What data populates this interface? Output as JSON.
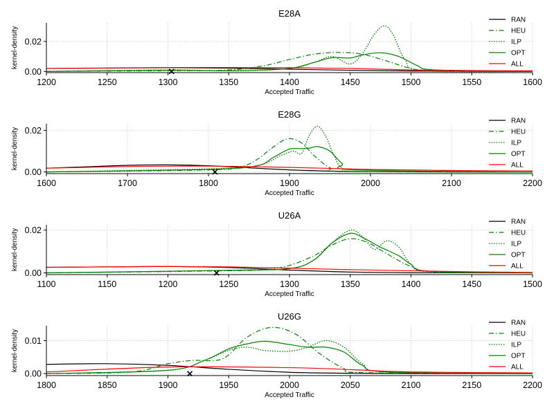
{
  "colors": {
    "RAN": "#000000",
    "HEU": "#008000",
    "ILP": "#008000",
    "OPT": "#008000",
    "ALL": "#ff0000"
  },
  "chart_data": [
    {
      "type": "line",
      "title": "E28A",
      "xlabel": "Accepted Traffic",
      "ylabel": "kernel-density",
      "xlim": [
        1200,
        1600
      ],
      "ylim": [
        -0.0008,
        0.0325
      ],
      "xticks": [
        1200,
        1250,
        1300,
        1350,
        1400,
        1450,
        1500,
        1550,
        1600
      ],
      "yticks": [
        0.0,
        0.02
      ],
      "ytick_labels": [
        "0.00",
        "0.02"
      ],
      "grid": true,
      "legend": "right",
      "marker": {
        "x": 1303,
        "y": 0.0
      },
      "series": [
        {
          "name": "RAN",
          "style": "solid",
          "x": [
            1200,
            1250,
            1300,
            1350,
            1400,
            1450,
            1500,
            1550,
            1600
          ],
          "y": [
            0.002,
            0.0022,
            0.0025,
            0.0022,
            0.0015,
            0.0008,
            0.0003,
            0.0001,
            0.0
          ]
        },
        {
          "name": "HEU",
          "style": "dashdot",
          "x": [
            1200,
            1300,
            1350,
            1380,
            1400,
            1420,
            1440,
            1460,
            1480,
            1500,
            1520,
            1600
          ],
          "y": [
            0.0,
            0.0005,
            0.001,
            0.004,
            0.008,
            0.0115,
            0.0127,
            0.0115,
            0.007,
            0.002,
            0.0004,
            0.0
          ]
        },
        {
          "name": "ILP",
          "style": "dotted",
          "x": [
            1200,
            1300,
            1350,
            1400,
            1420,
            1435,
            1450,
            1460,
            1470,
            1478,
            1485,
            1495,
            1510,
            1600
          ],
          "y": [
            0.0,
            0.001,
            0.0005,
            0.002,
            0.006,
            0.01,
            0.005,
            0.012,
            0.025,
            0.0305,
            0.025,
            0.008,
            0.0005,
            0.0
          ]
        },
        {
          "name": "OPT",
          "style": "solid",
          "x": [
            1200,
            1300,
            1360,
            1400,
            1420,
            1435,
            1450,
            1460,
            1475,
            1490,
            1505,
            1520,
            1600
          ],
          "y": [
            0.0,
            0.0008,
            0.0005,
            0.002,
            0.006,
            0.0092,
            0.009,
            0.011,
            0.0125,
            0.01,
            0.004,
            0.001,
            0.0
          ]
        },
        {
          "name": "ALL",
          "style": "solid",
          "x": [
            1200,
            1250,
            1300,
            1350,
            1400,
            1450,
            1500,
            1550,
            1600
          ],
          "y": [
            0.002,
            0.0023,
            0.0026,
            0.0026,
            0.0025,
            0.002,
            0.001,
            0.0006,
            0.0004
          ]
        }
      ]
    },
    {
      "type": "line",
      "title": "E28G",
      "xlabel": "Accepted Traffic",
      "ylabel": "kernel-density",
      "xlim": [
        1600,
        2200
      ],
      "ylim": [
        -0.0008,
        0.0232
      ],
      "xticks": [
        1600,
        1700,
        1800,
        1900,
        2000,
        2100,
        2200
      ],
      "yticks": [
        0.0,
        0.02
      ],
      "ytick_labels": [
        "0.00",
        "0.02"
      ],
      "grid": true,
      "legend": "right",
      "marker": {
        "x": 1808,
        "y": 0.0
      },
      "series": [
        {
          "name": "RAN",
          "style": "solid",
          "x": [
            1600,
            1650,
            1700,
            1750,
            1800,
            1850,
            1900,
            1950,
            2000,
            2100,
            2200
          ],
          "y": [
            0.0018,
            0.0025,
            0.0032,
            0.0034,
            0.003,
            0.002,
            0.001,
            0.0004,
            0.0001,
            0.0,
            0.0
          ]
        },
        {
          "name": "HEU",
          "style": "dashdot",
          "x": [
            1600,
            1800,
            1840,
            1860,
            1880,
            1898,
            1915,
            1930,
            1950,
            1970,
            2200
          ],
          "y": [
            0.0,
            0.001,
            0.0025,
            0.006,
            0.012,
            0.016,
            0.014,
            0.008,
            0.002,
            0.0003,
            0.0
          ]
        },
        {
          "name": "ILP",
          "style": "dotted",
          "x": [
            1600,
            1800,
            1860,
            1890,
            1905,
            1915,
            1925,
            1935,
            1945,
            1955,
            1965,
            1990,
            2200
          ],
          "y": [
            0.0,
            0.0015,
            0.003,
            0.008,
            0.01,
            0.009,
            0.018,
            0.022,
            0.017,
            0.008,
            0.002,
            0.0002,
            0.0
          ]
        },
        {
          "name": "OPT",
          "style": "solid",
          "x": [
            1600,
            1800,
            1860,
            1880,
            1900,
            1915,
            1925,
            1935,
            1950,
            1965,
            1980,
            2200
          ],
          "y": [
            0.0,
            0.0012,
            0.003,
            0.007,
            0.011,
            0.0112,
            0.0115,
            0.0122,
            0.01,
            0.004,
            0.001,
            0.0
          ]
        },
        {
          "name": "ALL",
          "style": "solid",
          "x": [
            1600,
            1700,
            1800,
            1900,
            2000,
            2100,
            2200
          ],
          "y": [
            0.0018,
            0.0026,
            0.0028,
            0.0022,
            0.0012,
            0.0007,
            0.0005
          ]
        }
      ]
    },
    {
      "type": "line",
      "title": "U26A",
      "xlabel": "Accepted Traffic",
      "ylabel": "kernel-density",
      "xlim": [
        1100,
        1500
      ],
      "ylim": [
        -0.0008,
        0.0225
      ],
      "xticks": [
        1100,
        1150,
        1200,
        1250,
        1300,
        1350,
        1400,
        1450,
        1500
      ],
      "yticks": [
        0.0,
        0.02
      ],
      "ytick_labels": [
        "0.00",
        "0.02"
      ],
      "grid": true,
      "legend": "right",
      "marker": {
        "x": 1240,
        "y": 0.0
      },
      "series": [
        {
          "name": "RAN",
          "style": "solid",
          "x": [
            1100,
            1150,
            1200,
            1250,
            1300,
            1350,
            1400,
            1500
          ],
          "y": [
            0.0026,
            0.0028,
            0.003,
            0.0025,
            0.0013,
            0.0004,
            0.0001,
            0.0
          ]
        },
        {
          "name": "HEU",
          "style": "dashdot",
          "x": [
            1100,
            1250,
            1280,
            1300,
            1320,
            1335,
            1350,
            1365,
            1380,
            1400,
            1420,
            1500
          ],
          "y": [
            0.0,
            0.001,
            0.0015,
            0.0035,
            0.008,
            0.013,
            0.016,
            0.014,
            0.009,
            0.003,
            0.0005,
            0.0
          ]
        },
        {
          "name": "ILP",
          "style": "dotted",
          "x": [
            1100,
            1250,
            1300,
            1320,
            1335,
            1350,
            1360,
            1370,
            1380,
            1390,
            1400,
            1415,
            1500
          ],
          "y": [
            0.0,
            0.0012,
            0.002,
            0.006,
            0.014,
            0.02,
            0.017,
            0.011,
            0.015,
            0.012,
            0.004,
            0.0005,
            0.0
          ]
        },
        {
          "name": "OPT",
          "style": "solid",
          "x": [
            1100,
            1250,
            1300,
            1320,
            1335,
            1350,
            1362,
            1375,
            1390,
            1400,
            1415,
            1500
          ],
          "y": [
            0.0,
            0.0012,
            0.002,
            0.006,
            0.014,
            0.0185,
            0.016,
            0.012,
            0.008,
            0.004,
            0.0008,
            0.0
          ]
        },
        {
          "name": "ALL",
          "style": "solid",
          "x": [
            1100,
            1150,
            1200,
            1250,
            1300,
            1350,
            1400,
            1450,
            1500
          ],
          "y": [
            0.0026,
            0.0028,
            0.003,
            0.0028,
            0.0022,
            0.0015,
            0.001,
            0.0005,
            0.0002
          ]
        }
      ]
    },
    {
      "type": "line",
      "title": "U26G",
      "xlabel": "Accepted Traffic",
      "ylabel": "kernel-density",
      "xlim": [
        1800,
        2200
      ],
      "ylim": [
        -0.0006,
        0.0145
      ],
      "xticks": [
        1800,
        1850,
        1900,
        1950,
        2000,
        2050,
        2100,
        2150,
        2200
      ],
      "yticks": [
        0.0,
        0.01
      ],
      "ytick_labels": [
        "0.00",
        "0.01"
      ],
      "grid": true,
      "legend": "right",
      "marker": {
        "x": 1918,
        "y": 0.0
      },
      "series": [
        {
          "name": "RAN",
          "style": "solid",
          "x": [
            1800,
            1850,
            1900,
            1950,
            2000,
            2050,
            2100,
            2200
          ],
          "y": [
            0.0028,
            0.003,
            0.0025,
            0.0013,
            0.0004,
            0.0001,
            0.0,
            0.0
          ]
        },
        {
          "name": "HEU",
          "style": "dashdot",
          "x": [
            1800,
            1870,
            1900,
            1920,
            1945,
            1965,
            1985,
            2005,
            2025,
            2045,
            2060,
            2200
          ],
          "y": [
            0.0,
            0.0005,
            0.003,
            0.004,
            0.0045,
            0.011,
            0.014,
            0.012,
            0.006,
            0.0015,
            0.0003,
            0.0
          ]
        },
        {
          "name": "ILP",
          "style": "dotted",
          "x": [
            1800,
            1900,
            1930,
            1950,
            1965,
            1980,
            2000,
            2015,
            2030,
            2045,
            2060,
            2080,
            2200
          ],
          "y": [
            0.0,
            0.001,
            0.004,
            0.007,
            0.008,
            0.007,
            0.0068,
            0.008,
            0.01,
            0.008,
            0.003,
            0.0005,
            0.0
          ]
        },
        {
          "name": "OPT",
          "style": "solid",
          "x": [
            1800,
            1900,
            1930,
            1950,
            1965,
            1980,
            2000,
            2015,
            2030,
            2045,
            2060,
            2080,
            2200
          ],
          "y": [
            0.0,
            0.001,
            0.004,
            0.0075,
            0.009,
            0.0098,
            0.0088,
            0.008,
            0.008,
            0.0065,
            0.0025,
            0.0005,
            0.0
          ]
        },
        {
          "name": "ALL",
          "style": "solid",
          "x": [
            1800,
            1900,
            2000,
            2050,
            2100,
            2200
          ],
          "y": [
            0.0005,
            0.002,
            0.0018,
            0.0012,
            0.0005,
            0.0002
          ]
        }
      ]
    }
  ]
}
